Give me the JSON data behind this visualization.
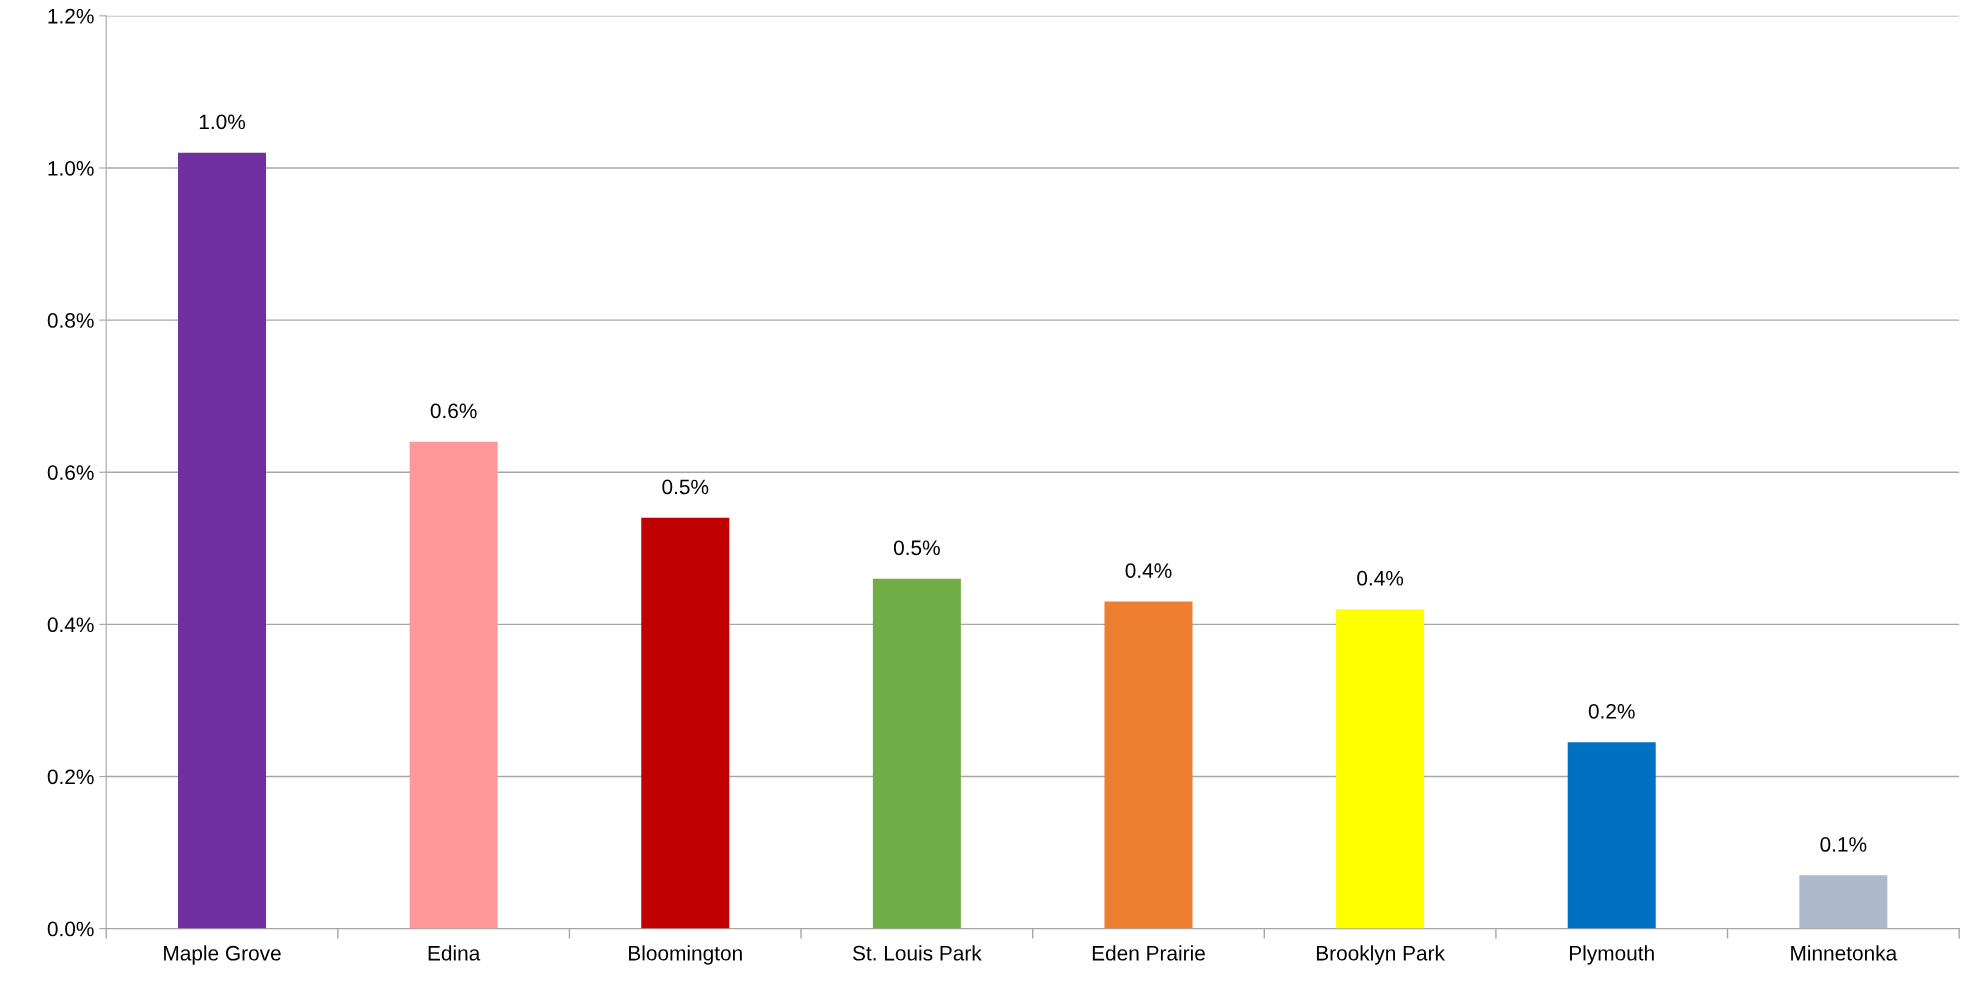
{
  "chart_data": {
    "type": "bar",
    "categories": [
      "Maple Grove",
      "Edina",
      "Bloomington",
      "St. Louis Park",
      "Eden Prairie",
      "Brooklyn Park",
      "Plymouth",
      "Minnetonka"
    ],
    "values": [
      1.02,
      0.64,
      0.54,
      0.46,
      0.43,
      0.42,
      0.245,
      0.07
    ],
    "colors": [
      "#7030a0",
      "#ff9999",
      "#c00000",
      "#70ad47",
      "#ed7d31",
      "#ffff00",
      "#0070c0",
      "#adb9ca"
    ],
    "value_labels": [
      "1.0%",
      "0.6%",
      "0.5%",
      "0.5%",
      "0.4%",
      "0.4%",
      "0.2%",
      "0.1%"
    ],
    "ylim": [
      0,
      1.2
    ],
    "yticks": [
      {
        "value": 0,
        "label": "0.0%"
      },
      {
        "value": 0.2,
        "label": "0.2%"
      },
      {
        "value": 0.4,
        "label": "0.4%"
      },
      {
        "value": 0.6,
        "label": "0.6%"
      },
      {
        "value": 0.8,
        "label": "0.8%"
      },
      {
        "value": 1.0,
        "label": "1.0%"
      },
      {
        "value": 1.2,
        "label": "1.2%"
      }
    ],
    "grid": "y",
    "legend": false
  }
}
